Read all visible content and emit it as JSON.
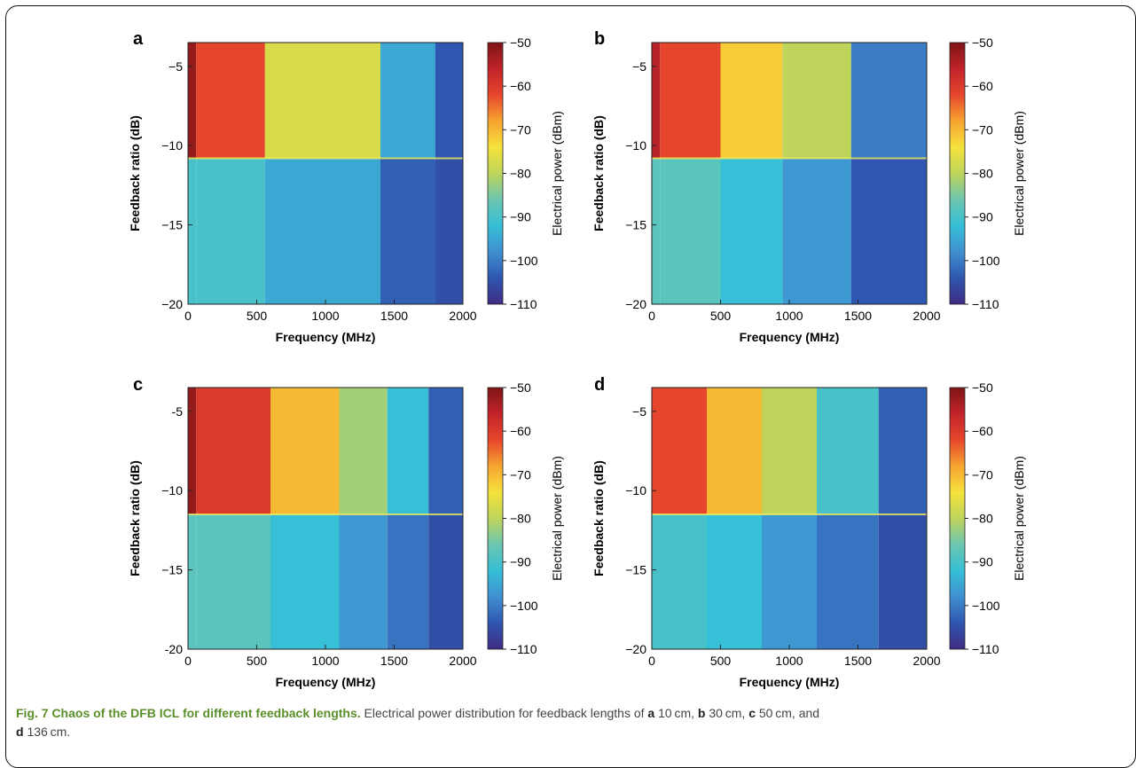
{
  "colorbar": {
    "label": "Electrical power (dBm)",
    "ticks": [
      "−50",
      "−60",
      "−70",
      "−80",
      "−90",
      "−100",
      "−110"
    ],
    "stops": [
      "#3f2b82",
      "#2f56b0",
      "#3f90d0",
      "#36bfd6",
      "#6cc6b0",
      "#bfd45a",
      "#f5e23c",
      "#f7a430",
      "#e6462c",
      "#c2232a",
      "#7e1515"
    ]
  },
  "caption": {
    "title": "Fig. 7 Chaos of the DFB ICL for different feedback lengths.",
    "text_1": " Electrical power distribution for feedback lengths of ",
    "label_a": "a",
    "len_a": " 10 cm, ",
    "label_b": "b",
    "len_b": " 30 cm, ",
    "label_c": "c",
    "len_c": " 50 cm, and",
    "label_d": "d",
    "len_d": " 136 cm."
  },
  "chart_data": [
    {
      "panel_label": "a",
      "type": "heatmap",
      "xlabel": "Frequency (MHz)",
      "ylabel": "Feedback ratio (dB)",
      "colorbar_label": "Electrical power (dBm)",
      "x_ticks": [
        "0",
        "500",
        "1000",
        "1500",
        "2000"
      ],
      "y_ticks": [
        "−5",
        "−10",
        "−15",
        "−20"
      ],
      "xlim": [
        0,
        2000
      ],
      "ylim": [
        -20,
        -3.5
      ],
      "clim": [
        -110,
        -50
      ],
      "threshold_db": -10.8,
      "bands": [
        {
          "x": [
            0,
            60
          ],
          "power": [
            -52,
            -90
          ]
        },
        {
          "x": [
            60,
            560
          ],
          "power": [
            -62,
            -90
          ]
        },
        {
          "x": [
            560,
            1400
          ],
          "power": [
            -77,
            -95
          ]
        },
        {
          "x": [
            1400,
            1800
          ],
          "power": [
            -95,
            -103
          ]
        },
        {
          "x": [
            1800,
            2000
          ],
          "power": [
            -104,
            -105
          ]
        }
      ]
    },
    {
      "panel_label": "b",
      "type": "heatmap",
      "xlabel": "Frequency (MHz)",
      "ylabel": "Feedback ratio (dB)",
      "colorbar_label": "Electrical power (dBm)",
      "x_ticks": [
        "0",
        "500",
        "1000",
        "1500",
        "2000"
      ],
      "y_ticks": [
        "−5",
        "−10",
        "−15",
        "−20"
      ],
      "xlim": [
        0,
        2000
      ],
      "ylim": [
        -20,
        -3.5
      ],
      "clim": [
        -110,
        -50
      ],
      "threshold_db": -10.8,
      "bands": [
        {
          "x": [
            0,
            60
          ],
          "power": [
            -55,
            -88
          ]
        },
        {
          "x": [
            60,
            500
          ],
          "power": [
            -62,
            -88
          ]
        },
        {
          "x": [
            500,
            950
          ],
          "power": [
            -72,
            -92
          ]
        },
        {
          "x": [
            950,
            1450
          ],
          "power": [
            -80,
            -97
          ]
        },
        {
          "x": [
            1450,
            2000
          ],
          "power": [
            -100,
            -104
          ]
        }
      ]
    },
    {
      "panel_label": "c",
      "type": "heatmap",
      "xlabel": "Frequency (MHz)",
      "ylabel": "Feedback ratio (dB)",
      "colorbar_label": "Electrical power (dBm)",
      "x_ticks": [
        "0",
        "500",
        "1000",
        "1500",
        "2000"
      ],
      "y_ticks": [
        "-5",
        "−10",
        "−15",
        "-20"
      ],
      "xlim": [
        0,
        2000
      ],
      "ylim": [
        -20,
        -3.5
      ],
      "clim": [
        -110,
        -50
      ],
      "threshold_db": -11.5,
      "bands": [
        {
          "x": [
            0,
            60
          ],
          "power": [
            -52,
            -88
          ]
        },
        {
          "x": [
            60,
            600
          ],
          "power": [
            -60,
            -88
          ]
        },
        {
          "x": [
            600,
            1100
          ],
          "power": [
            -70,
            -92
          ]
        },
        {
          "x": [
            1100,
            1450
          ],
          "power": [
            -82,
            -97
          ]
        },
        {
          "x": [
            1450,
            1750
          ],
          "power": [
            -92,
            -101
          ]
        },
        {
          "x": [
            1750,
            2000
          ],
          "power": [
            -103,
            -105
          ]
        }
      ]
    },
    {
      "panel_label": "d",
      "type": "heatmap",
      "xlabel": "Frequency (MHz)",
      "ylabel": "Feedback ratio (dB)",
      "colorbar_label": "Electrical power (dBm)",
      "x_ticks": [
        "0",
        "500",
        "1000",
        "1500",
        "2000"
      ],
      "y_ticks": [
        "−5",
        "−10",
        "−15",
        "−20"
      ],
      "xlim": [
        0,
        2000
      ],
      "ylim": [
        -20,
        -3.5
      ],
      "clim": [
        -110,
        -50
      ],
      "threshold_db": -11.5,
      "bands": [
        {
          "x": [
            0,
            400
          ],
          "power": [
            -62,
            -90
          ]
        },
        {
          "x": [
            400,
            800
          ],
          "power": [
            -70,
            -92
          ]
        },
        {
          "x": [
            800,
            1200
          ],
          "power": [
            -80,
            -97
          ]
        },
        {
          "x": [
            1200,
            1650
          ],
          "power": [
            -90,
            -101
          ]
        },
        {
          "x": [
            1650,
            2000
          ],
          "power": [
            -103,
            -105
          ]
        }
      ]
    }
  ]
}
